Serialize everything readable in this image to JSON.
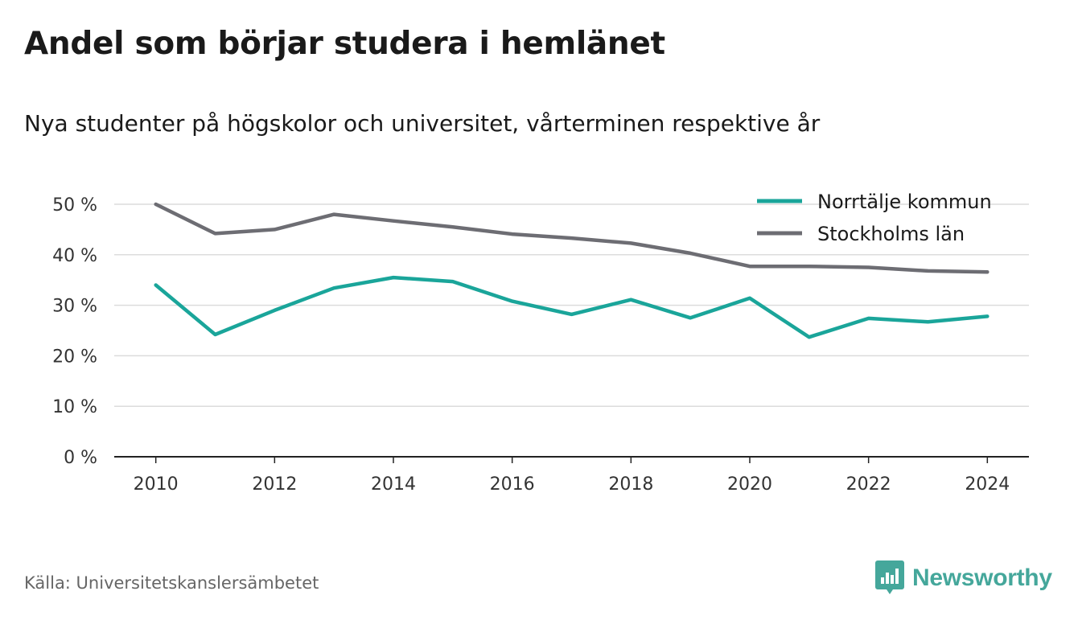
{
  "title": "Andel som börjar studera i hemlänet",
  "subtitle": "Nya studenter på högskolor och universitet, vårterminen respektive år",
  "source": "Källa: Universitetskanslersämbetet",
  "brand": {
    "name": "Newsworthy",
    "icon": "newsworthy-logo-icon",
    "color": "#45a79b"
  },
  "chart_data": {
    "type": "line",
    "title": "",
    "xlabel": "",
    "ylabel": "",
    "x": [
      2010,
      2011,
      2012,
      2013,
      2014,
      2015,
      2016,
      2017,
      2018,
      2019,
      2020,
      2021,
      2022,
      2023,
      2024
    ],
    "xticks": [
      "2010",
      "2012",
      "2014",
      "2016",
      "2018",
      "2020",
      "2022",
      "2024"
    ],
    "yticks": [
      "0 %",
      "10 %",
      "20 %",
      "30 %",
      "40 %",
      "50 %"
    ],
    "ylim": [
      0,
      50
    ],
    "grid": true,
    "legend_position": "top-right",
    "series": [
      {
        "name": "Norrtälje kommun",
        "color": "#1aa59a",
        "values": [
          34.0,
          24.2,
          29.0,
          33.4,
          35.5,
          34.7,
          30.8,
          28.2,
          31.1,
          27.5,
          31.4,
          23.7,
          27.4,
          26.7,
          27.8
        ]
      },
      {
        "name": "Stockholms län",
        "color": "#6d6d73",
        "values": [
          50.0,
          44.2,
          45.0,
          48.0,
          46.7,
          45.5,
          44.1,
          43.3,
          42.3,
          40.3,
          37.7,
          37.7,
          37.5,
          36.8,
          36.6
        ]
      }
    ]
  }
}
